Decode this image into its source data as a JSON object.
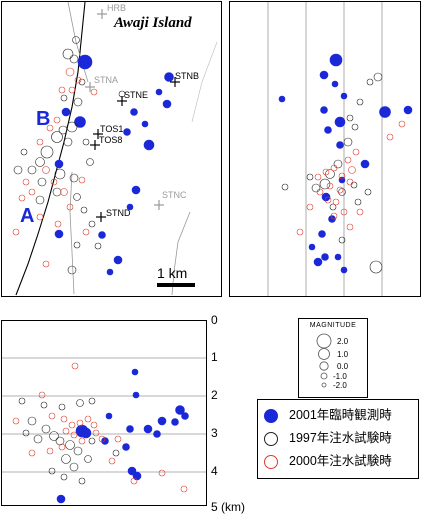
{
  "map": {
    "title": "Awaji Island",
    "label_A": "A",
    "label_B": "B",
    "scale_label": "1 km",
    "stations": [
      {
        "name": "HRB",
        "status": "gray"
      },
      {
        "name": "STNA",
        "status": "gray"
      },
      {
        "name": "STNB",
        "status": "black"
      },
      {
        "name": "STNE",
        "status": "black"
      },
      {
        "name": "TOS1",
        "status": "black"
      },
      {
        "name": "TOS8",
        "status": "black"
      },
      {
        "name": "STNC",
        "status": "gray"
      },
      {
        "name": "STND",
        "status": "black"
      }
    ]
  },
  "depth_axis": {
    "ticks": [
      "0",
      "1",
      "2",
      "3",
      "4",
      "5 (km)"
    ]
  },
  "magnitude_legend": {
    "title": "MAGNITUDE",
    "values": [
      "2.0",
      "1.0",
      "0.0",
      "-1.0",
      "-2.0"
    ]
  },
  "series_legend": [
    {
      "label": "2001年臨時観測時",
      "style": "filled",
      "color": "#1a28d8"
    },
    {
      "label": "1997年注水試験時",
      "style": "open",
      "color": "#222222"
    },
    {
      "label": "2000年注水試験時",
      "style": "open",
      "color": "#e03a2a"
    }
  ],
  "colors": {
    "blue": "#1a28d8",
    "red": "#e03a2a",
    "black": "#222222",
    "gray": "#9a9a9a"
  }
}
